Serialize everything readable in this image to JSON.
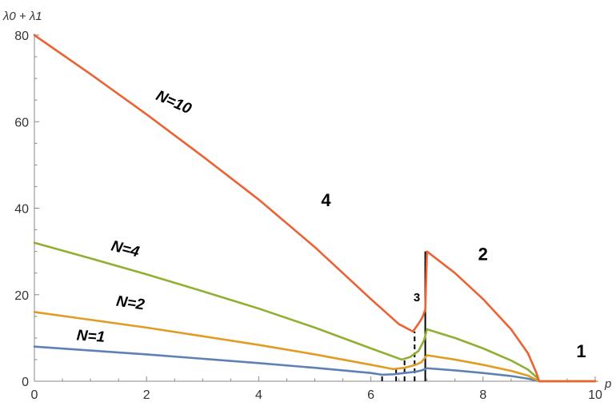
{
  "chart_data": {
    "type": "line",
    "ylabel": "λ0 + λ1",
    "xlabel": "p",
    "xlim": [
      0,
      10
    ],
    "ylim": [
      0,
      80
    ],
    "xticks": [
      0,
      2,
      4,
      6,
      8,
      10
    ],
    "yticks": [
      0,
      20,
      40,
      60,
      80
    ],
    "grid": false,
    "series": [
      {
        "name": "N=1",
        "color": "#5E81B5",
        "points": [
          [
            0,
            8
          ],
          [
            1,
            7.1
          ],
          [
            2,
            6.2
          ],
          [
            3,
            5.2
          ],
          [
            4,
            4.2
          ],
          [
            5,
            3.1
          ],
          [
            6,
            1.9
          ],
          [
            6.2,
            1.5
          ],
          [
            6.4,
            1.6
          ],
          [
            6.6,
            1.9
          ],
          [
            6.8,
            2.2
          ],
          [
            6.9,
            2.5
          ],
          [
            6.97,
            2.8
          ],
          [
            7,
            3.0
          ],
          [
            7.5,
            2.5
          ],
          [
            8,
            1.9
          ],
          [
            8.5,
            1.2
          ],
          [
            8.8,
            0.6
          ],
          [
            9,
            0
          ],
          [
            10,
            0
          ]
        ]
      },
      {
        "name": "N=2",
        "color": "#E19C24",
        "points": [
          [
            0,
            16
          ],
          [
            1,
            14.2
          ],
          [
            2,
            12.4
          ],
          [
            3,
            10.4
          ],
          [
            4,
            8.4
          ],
          [
            5,
            6.2
          ],
          [
            6,
            3.8
          ],
          [
            6.4,
            2.8
          ],
          [
            6.6,
            3.1
          ],
          [
            6.8,
            3.8
          ],
          [
            6.9,
            4.4
          ],
          [
            6.97,
            5.5
          ],
          [
            7,
            6.0
          ],
          [
            7.5,
            5.0
          ],
          [
            8,
            3.8
          ],
          [
            8.5,
            2.4
          ],
          [
            8.8,
            1.3
          ],
          [
            9,
            0
          ],
          [
            10,
            0
          ]
        ]
      },
      {
        "name": "N=4",
        "color": "#8FB032",
        "points": [
          [
            0,
            32
          ],
          [
            1,
            28.4
          ],
          [
            2,
            24.7
          ],
          [
            3,
            20.8
          ],
          [
            4,
            16.8
          ],
          [
            5,
            12.4
          ],
          [
            6,
            7.6
          ],
          [
            6.55,
            5.0
          ],
          [
            6.7,
            5.6
          ],
          [
            6.85,
            7.0
          ],
          [
            6.95,
            9.5
          ],
          [
            7,
            12.0
          ],
          [
            7.5,
            10.0
          ],
          [
            8,
            7.6
          ],
          [
            8.5,
            4.8
          ],
          [
            8.8,
            2.7
          ],
          [
            8.95,
            1.0
          ],
          [
            9,
            0
          ],
          [
            10,
            0
          ]
        ]
      },
      {
        "name": "N=10",
        "color": "#EB6235",
        "points": [
          [
            0,
            80
          ],
          [
            1,
            71
          ],
          [
            2,
            61.7
          ],
          [
            3,
            52
          ],
          [
            4,
            42
          ],
          [
            5,
            31
          ],
          [
            6,
            19
          ],
          [
            6.5,
            13.2
          ],
          [
            6.75,
            11.5
          ],
          [
            6.85,
            13.3
          ],
          [
            6.92,
            14.8
          ],
          [
            6.97,
            16.5
          ],
          [
            7,
            30
          ],
          [
            7.5,
            25.0
          ],
          [
            8,
            19.0
          ],
          [
            8.5,
            12.0
          ],
          [
            8.8,
            6.5
          ],
          [
            8.95,
            2.0
          ],
          [
            9,
            0
          ],
          [
            10,
            0
          ]
        ]
      }
    ],
    "vertical_markers": [
      {
        "x": 6.2,
        "y_top": 1.5,
        "style": "dashed"
      },
      {
        "x": 6.45,
        "y_top": 2.9,
        "style": "dashed"
      },
      {
        "x": 6.6,
        "y_top": 5.0,
        "style": "dashed"
      },
      {
        "x": 6.78,
        "y_top": 11.5,
        "style": "dashed"
      },
      {
        "x": 6.97,
        "y_top": 30,
        "style": "solid"
      }
    ],
    "series_labels": [
      {
        "text": "N=10",
        "x": 2.45,
        "y": 63.5,
        "rotate": 24
      },
      {
        "text": "N=4",
        "x": 1.6,
        "y": 29.5,
        "rotate": 14
      },
      {
        "text": "N=2",
        "x": 1.7,
        "y": 17.0,
        "rotate": 8
      },
      {
        "text": "N=1",
        "x": 1.0,
        "y": 9.3,
        "rotate": 4
      }
    ],
    "region_labels": [
      {
        "text": "4",
        "x": 5.2,
        "y": 40.5,
        "size": "large"
      },
      {
        "text": "3",
        "x": 6.82,
        "y": 18.5,
        "size": "small"
      },
      {
        "text": "2",
        "x": 8.0,
        "y": 28.0,
        "size": "large"
      },
      {
        "text": "1",
        "x": 9.75,
        "y": 5.5,
        "size": "large"
      }
    ]
  }
}
